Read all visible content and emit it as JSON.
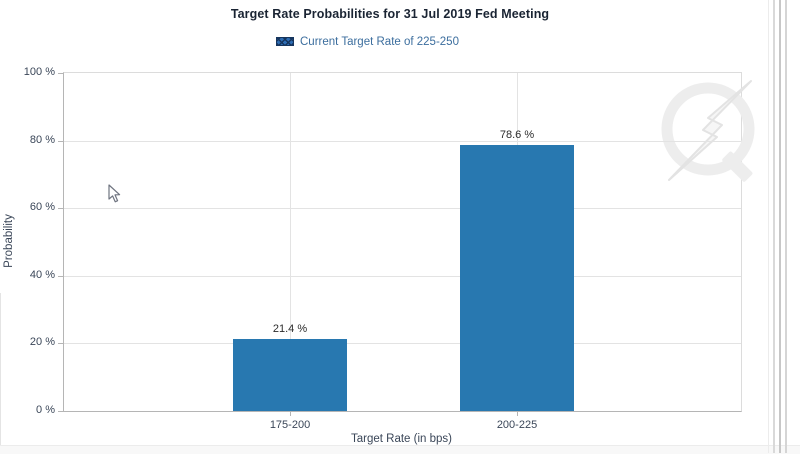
{
  "chart_data": {
    "type": "bar",
    "title": "Target Rate Probabilities for 31 Jul 2019 Fed Meeting",
    "legend": [
      "Current Target Rate of 225-250"
    ],
    "legend_position": "top",
    "categories": [
      "175-200",
      "200-225"
    ],
    "values": [
      21.4,
      78.6
    ],
    "value_labels": [
      "21.4 %",
      "78.6 %"
    ],
    "xlabel": "Target Rate (in bps)",
    "ylabel": "Probability",
    "ylim": [
      0,
      100
    ],
    "ytick_labels": [
      "100 %",
      "80 %",
      "60 %",
      "40 %",
      "20 %",
      "0 %"
    ],
    "grid": true,
    "bar_color": "#2878b0"
  },
  "colors": {
    "bar": "#2878b0",
    "legend_swatch_fill": "#2e6db4",
    "legend_swatch_cross": "#16355e",
    "legend_text": "#3c6e9e",
    "axis_line": "#b5b5b5",
    "gridline": "#e3e3e3",
    "tick_text": "#3a4658",
    "title_text": "#1a2433",
    "watermark": "#ededed"
  },
  "icons": {
    "legend_swatch": "crosshatch-swatch",
    "watermark": "q-lightning-bolt-logo",
    "cursor": "arrow-pointer"
  }
}
